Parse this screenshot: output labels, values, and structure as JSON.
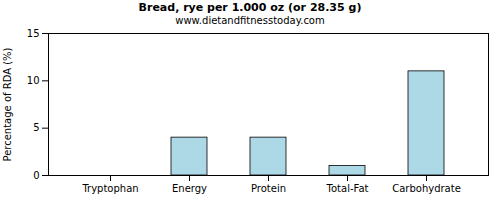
{
  "chart_data": {
    "type": "bar",
    "title": "Bread, rye per 1.000 oz (or 28.35 g)",
    "subtitle": "www.dietandfitnesstoday.com",
    "y_label": "Percentage of RDA (%)",
    "categories": [
      "Tryptophan",
      "Energy",
      "Protein",
      "Total-Fat",
      "Carbohydrate"
    ],
    "values": [
      0,
      4,
      4,
      1,
      11
    ],
    "color": "#add8e6",
    "ylim": [
      0,
      15
    ],
    "yticks": [
      0,
      5,
      10,
      15
    ],
    "grid": false
  }
}
